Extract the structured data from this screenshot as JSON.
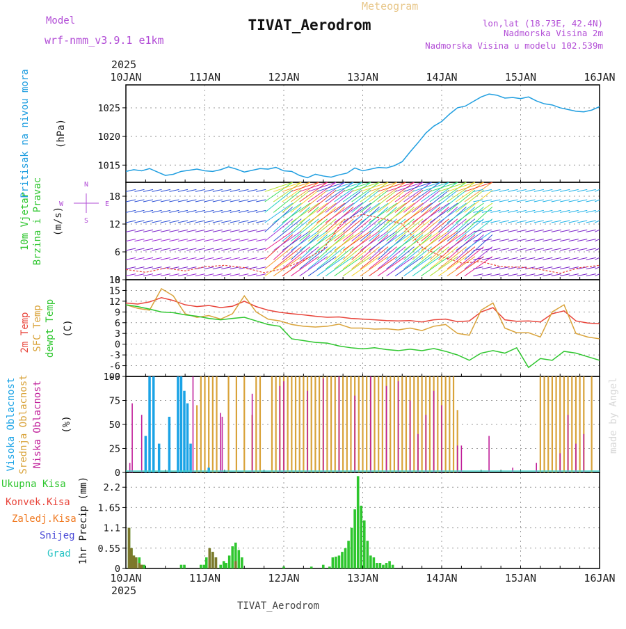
{
  "header": {
    "model_label": "Model",
    "model_name": "wrf-nmm_v3.9.1  e1km",
    "type_label": "Meteogram",
    "title": "TIVAT_Aerodrom",
    "lonlat": "lon,lat (18.73E, 42.4N)",
    "elevation": "Nadmorska Visina 2m",
    "model_elevation": "Nadmorska Visina u modelu 102.539m",
    "year_top": "2025",
    "year_bottom": "2025",
    "footer": "TIVAT_Aerodrom",
    "credit": "made by Angel"
  },
  "colors": {
    "pressure": "#1f9ee0",
    "t2m": "#e8443a",
    "sfc": "#d9a33a",
    "dew": "#2ec62e",
    "high_cloud": "#1aa3e6",
    "mid_cloud": "#d9a33a",
    "low_cloud": "#c0209a",
    "total_precip": "#2ec62e",
    "conv_precip": "#e8443a",
    "frz_precip": "#f07a22",
    "snow": "#4747d6",
    "graupel": "#29c4c4",
    "purple_text": "#b24dd6"
  },
  "chart_data": [
    {
      "type": "line",
      "panel": "pressure",
      "title": "Pritisak na nivou mora",
      "ylabel": "(hPa)",
      "x_ticks": [
        "10JAN",
        "11JAN",
        "12JAN",
        "13JAN",
        "14JAN",
        "15JAN",
        "16JAN"
      ],
      "xlim_days": [
        0,
        6
      ],
      "ylim": [
        1012,
        1029
      ],
      "yticks": [
        1015,
        1020,
        1025
      ],
      "grid": true,
      "series": [
        {
          "x": [
            0,
            0.1,
            0.2,
            0.3,
            0.4,
            0.5,
            0.6,
            0.7,
            0.8,
            0.9,
            1.0,
            1.1,
            1.2,
            1.3,
            1.4,
            1.5,
            1.6,
            1.7,
            1.8,
            1.9,
            2.0,
            2.1,
            2.2,
            2.3,
            2.4,
            2.5,
            2.6,
            2.7,
            2.8,
            2.9,
            3.0,
            3.1,
            3.2,
            3.3,
            3.4,
            3.5,
            3.6,
            3.7,
            3.8,
            3.9,
            4.0,
            4.1,
            4.2,
            4.3,
            4.4,
            4.5,
            4.6,
            4.7,
            4.8,
            4.9,
            5.0,
            5.1,
            5.2,
            5.3,
            5.4,
            5.5,
            5.6,
            5.7,
            5.8,
            5.9,
            6.0
          ],
          "y": [
            1013.9,
            1014.2,
            1014.0,
            1014.4,
            1013.8,
            1013.2,
            1013.4,
            1013.9,
            1014.1,
            1014.3,
            1014.0,
            1013.9,
            1014.2,
            1014.7,
            1014.3,
            1013.8,
            1014.1,
            1014.4,
            1014.3,
            1014.6,
            1014.0,
            1013.9,
            1013.2,
            1012.8,
            1013.4,
            1013.1,
            1012.9,
            1013.3,
            1013.6,
            1014.5,
            1014.0,
            1014.3,
            1014.6,
            1014.5,
            1014.9,
            1015.6,
            1017.3,
            1018.9,
            1020.6,
            1021.8,
            1022.6,
            1023.9,
            1025.0,
            1025.3,
            1026.1,
            1026.9,
            1027.4,
            1027.2,
            1026.7,
            1026.8,
            1026.6,
            1026.9,
            1026.2,
            1025.7,
            1025.5,
            1025.0,
            1024.7,
            1024.4,
            1024.3,
            1024.6,
            1025.2
          ]
        }
      ]
    },
    {
      "type": "line",
      "panel": "wind",
      "title": "10m Vjetar Brzina i Pravac",
      "ylabel": "(m/s)",
      "compass": [
        "N",
        "E",
        "W",
        "S"
      ],
      "ylim": [
        0,
        21
      ],
      "yticks": [
        0,
        6,
        12,
        18
      ],
      "grid": true,
      "series": [
        {
          "name": "wind speed",
          "x": [
            0,
            0.25,
            0.5,
            0.75,
            1.0,
            1.25,
            1.5,
            1.75,
            2.0,
            2.25,
            2.5,
            2.75,
            3.0,
            3.25,
            3.5,
            3.75,
            4.0,
            4.25,
            4.5,
            4.75,
            5.0,
            5.25,
            5.5,
            5.75,
            6.0
          ],
          "y": [
            2.2,
            1.6,
            2.5,
            1.9,
            2.8,
            3.1,
            2.6,
            1.5,
            2.4,
            4.2,
            6.5,
            12.8,
            14.1,
            13.2,
            12.0,
            7.0,
            5.0,
            3.6,
            3.9,
            2.8,
            2.7,
            2.2,
            1.4,
            2.6,
            3.1
          ]
        }
      ]
    },
    {
      "type": "line",
      "panel": "temperature",
      "title": [
        "2m Temp",
        "SFC Temp",
        "dewpt Temp"
      ],
      "ylabel": "(C)",
      "ylim": [
        -9,
        18
      ],
      "yticks": [
        -9,
        -6,
        -3,
        0,
        3,
        6,
        9,
        12,
        15,
        18
      ],
      "grid": true,
      "series": [
        {
          "name": "2m Temp",
          "x": [
            0,
            0.15,
            0.3,
            0.45,
            0.6,
            0.75,
            0.9,
            1.05,
            1.2,
            1.35,
            1.5,
            1.65,
            1.8,
            1.95,
            2.1,
            2.25,
            2.4,
            2.55,
            2.7,
            2.85,
            3.0,
            3.15,
            3.3,
            3.45,
            3.6,
            3.75,
            3.9,
            4.05,
            4.2,
            4.35,
            4.5,
            4.65,
            4.8,
            4.95,
            5.1,
            5.25,
            5.4,
            5.55,
            5.7,
            5.85,
            6.0
          ],
          "y": [
            11.5,
            11.2,
            11.8,
            13.0,
            12.2,
            11.0,
            10.5,
            10.8,
            10.2,
            10.6,
            12.0,
            10.5,
            9.5,
            8.9,
            8.5,
            8.2,
            7.8,
            7.5,
            7.6,
            7.2,
            7.0,
            6.8,
            6.6,
            6.5,
            6.6,
            6.2,
            6.8,
            7.0,
            6.3,
            6.5,
            9.0,
            10.2,
            6.8,
            6.4,
            6.5,
            6.2,
            8.5,
            9.3,
            6.5,
            5.9,
            5.7
          ]
        },
        {
          "name": "SFC Temp",
          "x": [
            0,
            0.15,
            0.3,
            0.45,
            0.6,
            0.75,
            0.9,
            1.05,
            1.2,
            1.35,
            1.5,
            1.65,
            1.8,
            1.95,
            2.1,
            2.25,
            2.4,
            2.55,
            2.7,
            2.85,
            3.0,
            3.15,
            3.3,
            3.45,
            3.6,
            3.75,
            3.9,
            4.05,
            4.2,
            4.35,
            4.5,
            4.65,
            4.8,
            4.95,
            5.1,
            5.25,
            5.4,
            5.55,
            5.7,
            5.85,
            6.0
          ],
          "y": [
            11.0,
            10.0,
            9.5,
            15.5,
            13.5,
            8.5,
            7.5,
            8.0,
            7.0,
            8.5,
            13.5,
            9.0,
            7.0,
            6.5,
            5.5,
            5.0,
            4.8,
            5.0,
            5.6,
            4.5,
            4.5,
            4.2,
            4.3,
            4.0,
            4.5,
            3.8,
            5.0,
            5.5,
            3.0,
            2.5,
            9.5,
            11.5,
            4.5,
            3.2,
            3.2,
            2.0,
            9.0,
            11.0,
            3.0,
            2.0,
            1.5
          ]
        },
        {
          "name": "dewpt Temp",
          "x": [
            0,
            0.15,
            0.3,
            0.45,
            0.6,
            0.75,
            0.9,
            1.05,
            1.2,
            1.35,
            1.5,
            1.65,
            1.8,
            1.95,
            2.1,
            2.25,
            2.4,
            2.55,
            2.7,
            2.85,
            3.0,
            3.15,
            3.3,
            3.45,
            3.6,
            3.75,
            3.9,
            4.05,
            4.2,
            4.35,
            4.5,
            4.65,
            4.8,
            4.95,
            5.1,
            5.25,
            5.4,
            5.55,
            5.7,
            5.85,
            6.0
          ],
          "y": [
            11.0,
            10.5,
            9.8,
            9.0,
            8.8,
            8.2,
            7.8,
            7.2,
            6.8,
            7.2,
            7.5,
            6.5,
            5.5,
            5.0,
            1.5,
            1.0,
            0.5,
            0.3,
            -0.5,
            -1.0,
            -1.3,
            -1.0,
            -1.5,
            -1.8,
            -1.4,
            -1.8,
            -1.2,
            -2.0,
            -3.0,
            -4.5,
            -2.5,
            -1.8,
            -2.5,
            -1.0,
            -6.5,
            -4.0,
            -4.5,
            -2.0,
            -2.5,
            -3.5,
            -4.5
          ]
        }
      ]
    },
    {
      "type": "bar",
      "panel": "cloud",
      "title": [
        "Visoka Oblacnost",
        "Srednja Oblacnost",
        "Niska Oblacnost"
      ],
      "ylabel": "(%)",
      "ylim": [
        0,
        100
      ],
      "yticks": [
        0,
        25,
        50,
        75,
        100
      ],
      "grid": true,
      "series": [
        {
          "name": "Visoka Oblacnost",
          "x": [
            0.25,
            0.3,
            0.35,
            0.42,
            0.55,
            0.66,
            0.7,
            0.74,
            0.78,
            0.82,
            1.05
          ],
          "values": [
            38,
            100,
            100,
            30,
            58,
            100,
            100,
            85,
            72,
            30,
            5
          ]
        },
        {
          "name": "Srednja Oblacnost",
          "x": [
            0.9,
            0.95,
            1.0,
            1.05,
            1.1,
            1.15,
            1.3,
            1.4,
            1.5,
            1.6,
            1.65,
            1.7,
            1.85,
            1.9,
            1.95,
            2.0,
            2.05,
            2.1,
            2.15,
            2.2,
            2.25,
            2.3,
            2.35,
            2.4,
            2.45,
            2.5,
            2.55,
            2.6,
            2.65,
            2.7,
            2.75,
            2.8,
            2.85,
            2.9,
            2.95,
            3.0,
            3.05,
            3.1,
            3.15,
            3.2,
            3.25,
            3.3,
            3.35,
            3.4,
            3.45,
            3.5,
            3.55,
            3.6,
            3.65,
            3.7,
            3.75,
            3.8,
            3.85,
            3.9,
            3.95,
            4.0,
            4.05,
            4.1,
            4.15,
            4.2,
            5.25,
            5.3,
            5.35,
            5.4,
            5.45,
            5.5,
            5.55,
            5.6,
            5.65,
            5.7,
            5.75,
            5.8,
            5.9
          ],
          "values": [
            70,
            100,
            100,
            100,
            100,
            100,
            100,
            100,
            100,
            60,
            100,
            100,
            100,
            100,
            100,
            100,
            100,
            100,
            100,
            100,
            100,
            100,
            100,
            100,
            100,
            100,
            100,
            100,
            100,
            100,
            100,
            100,
            100,
            100,
            100,
            100,
            100,
            100,
            100,
            100,
            100,
            100,
            100,
            100,
            100,
            100,
            100,
            100,
            100,
            100,
            100,
            100,
            100,
            100,
            100,
            100,
            100,
            100,
            100,
            65,
            100,
            100,
            100,
            100,
            100,
            100,
            100,
            100,
            100,
            100,
            100,
            100,
            100
          ]
        },
        {
          "name": "Niska Oblacnost",
          "x": [
            0.05,
            0.08,
            0.2,
            0.85,
            1.2,
            1.22,
            1.6,
            1.95,
            2.0,
            2.3,
            2.5,
            2.7,
            2.9,
            3.1,
            3.3,
            3.45,
            3.6,
            3.7,
            3.8,
            3.9,
            4.0,
            4.2,
            4.25,
            4.6,
            4.9,
            5.2,
            5.5,
            5.6,
            5.7,
            5.8
          ],
          "values": [
            10,
            72,
            60,
            100,
            62,
            58,
            82,
            90,
            95,
            85,
            98,
            100,
            80,
            100,
            90,
            95,
            75,
            40,
            60,
            85,
            70,
            28,
            28,
            38,
            5,
            10,
            20,
            60,
            30,
            40
          ]
        }
      ]
    },
    {
      "type": "bar",
      "panel": "precip",
      "title": [
        "Ukupna Kisa",
        "Konvek.Kisa",
        "Zaledj.Kisa",
        "Snijeg",
        "Grad"
      ],
      "ylabel": "1hr Precip (mm)",
      "ylim": [
        0,
        2.6
      ],
      "yticks": [
        0,
        0.55,
        1.1,
        1.65,
        2.2
      ],
      "grid": true,
      "series": [
        {
          "name": "Ukupna Kisa",
          "x": [
            0.04,
            0.07,
            0.1,
            0.13,
            0.17,
            0.2,
            0.23,
            0.7,
            0.74,
            0.95,
            0.99,
            1.02,
            1.06,
            1.1,
            1.14,
            1.2,
            1.24,
            1.27,
            1.31,
            1.35,
            1.39,
            1.43,
            1.47,
            2.0,
            2.35,
            2.5,
            2.58,
            2.62,
            2.66,
            2.7,
            2.74,
            2.78,
            2.82,
            2.86,
            2.9,
            2.94,
            2.98,
            3.02,
            3.06,
            3.1,
            3.14,
            3.18,
            3.22,
            3.26,
            3.3,
            3.34,
            3.38
          ],
          "values": [
            1.1,
            0.55,
            0.35,
            0.3,
            0.3,
            0.1,
            0.1,
            0.1,
            0.1,
            0.1,
            0.1,
            0.3,
            0.55,
            0.45,
            0.3,
            0.1,
            0.2,
            0.15,
            0.35,
            0.6,
            0.7,
            0.5,
            0.3,
            0.05,
            0.05,
            0.1,
            0.05,
            0.3,
            0.32,
            0.35,
            0.45,
            0.55,
            0.75,
            1.1,
            1.6,
            2.5,
            1.7,
            1.3,
            0.75,
            0.35,
            0.3,
            0.15,
            0.15,
            0.1,
            0.15,
            0.2,
            0.1
          ]
        },
        {
          "name": "Konvek.Kisa",
          "x": [
            0.04,
            0.07,
            0.1,
            0.13,
            0.17,
            0.2,
            1.06,
            1.1,
            1.14,
            1.39
          ],
          "values": [
            1.1,
            0.55,
            0.35,
            0.3,
            0.15,
            0.1,
            0.55,
            0.45,
            0.3,
            0.2
          ]
        }
      ]
    }
  ]
}
